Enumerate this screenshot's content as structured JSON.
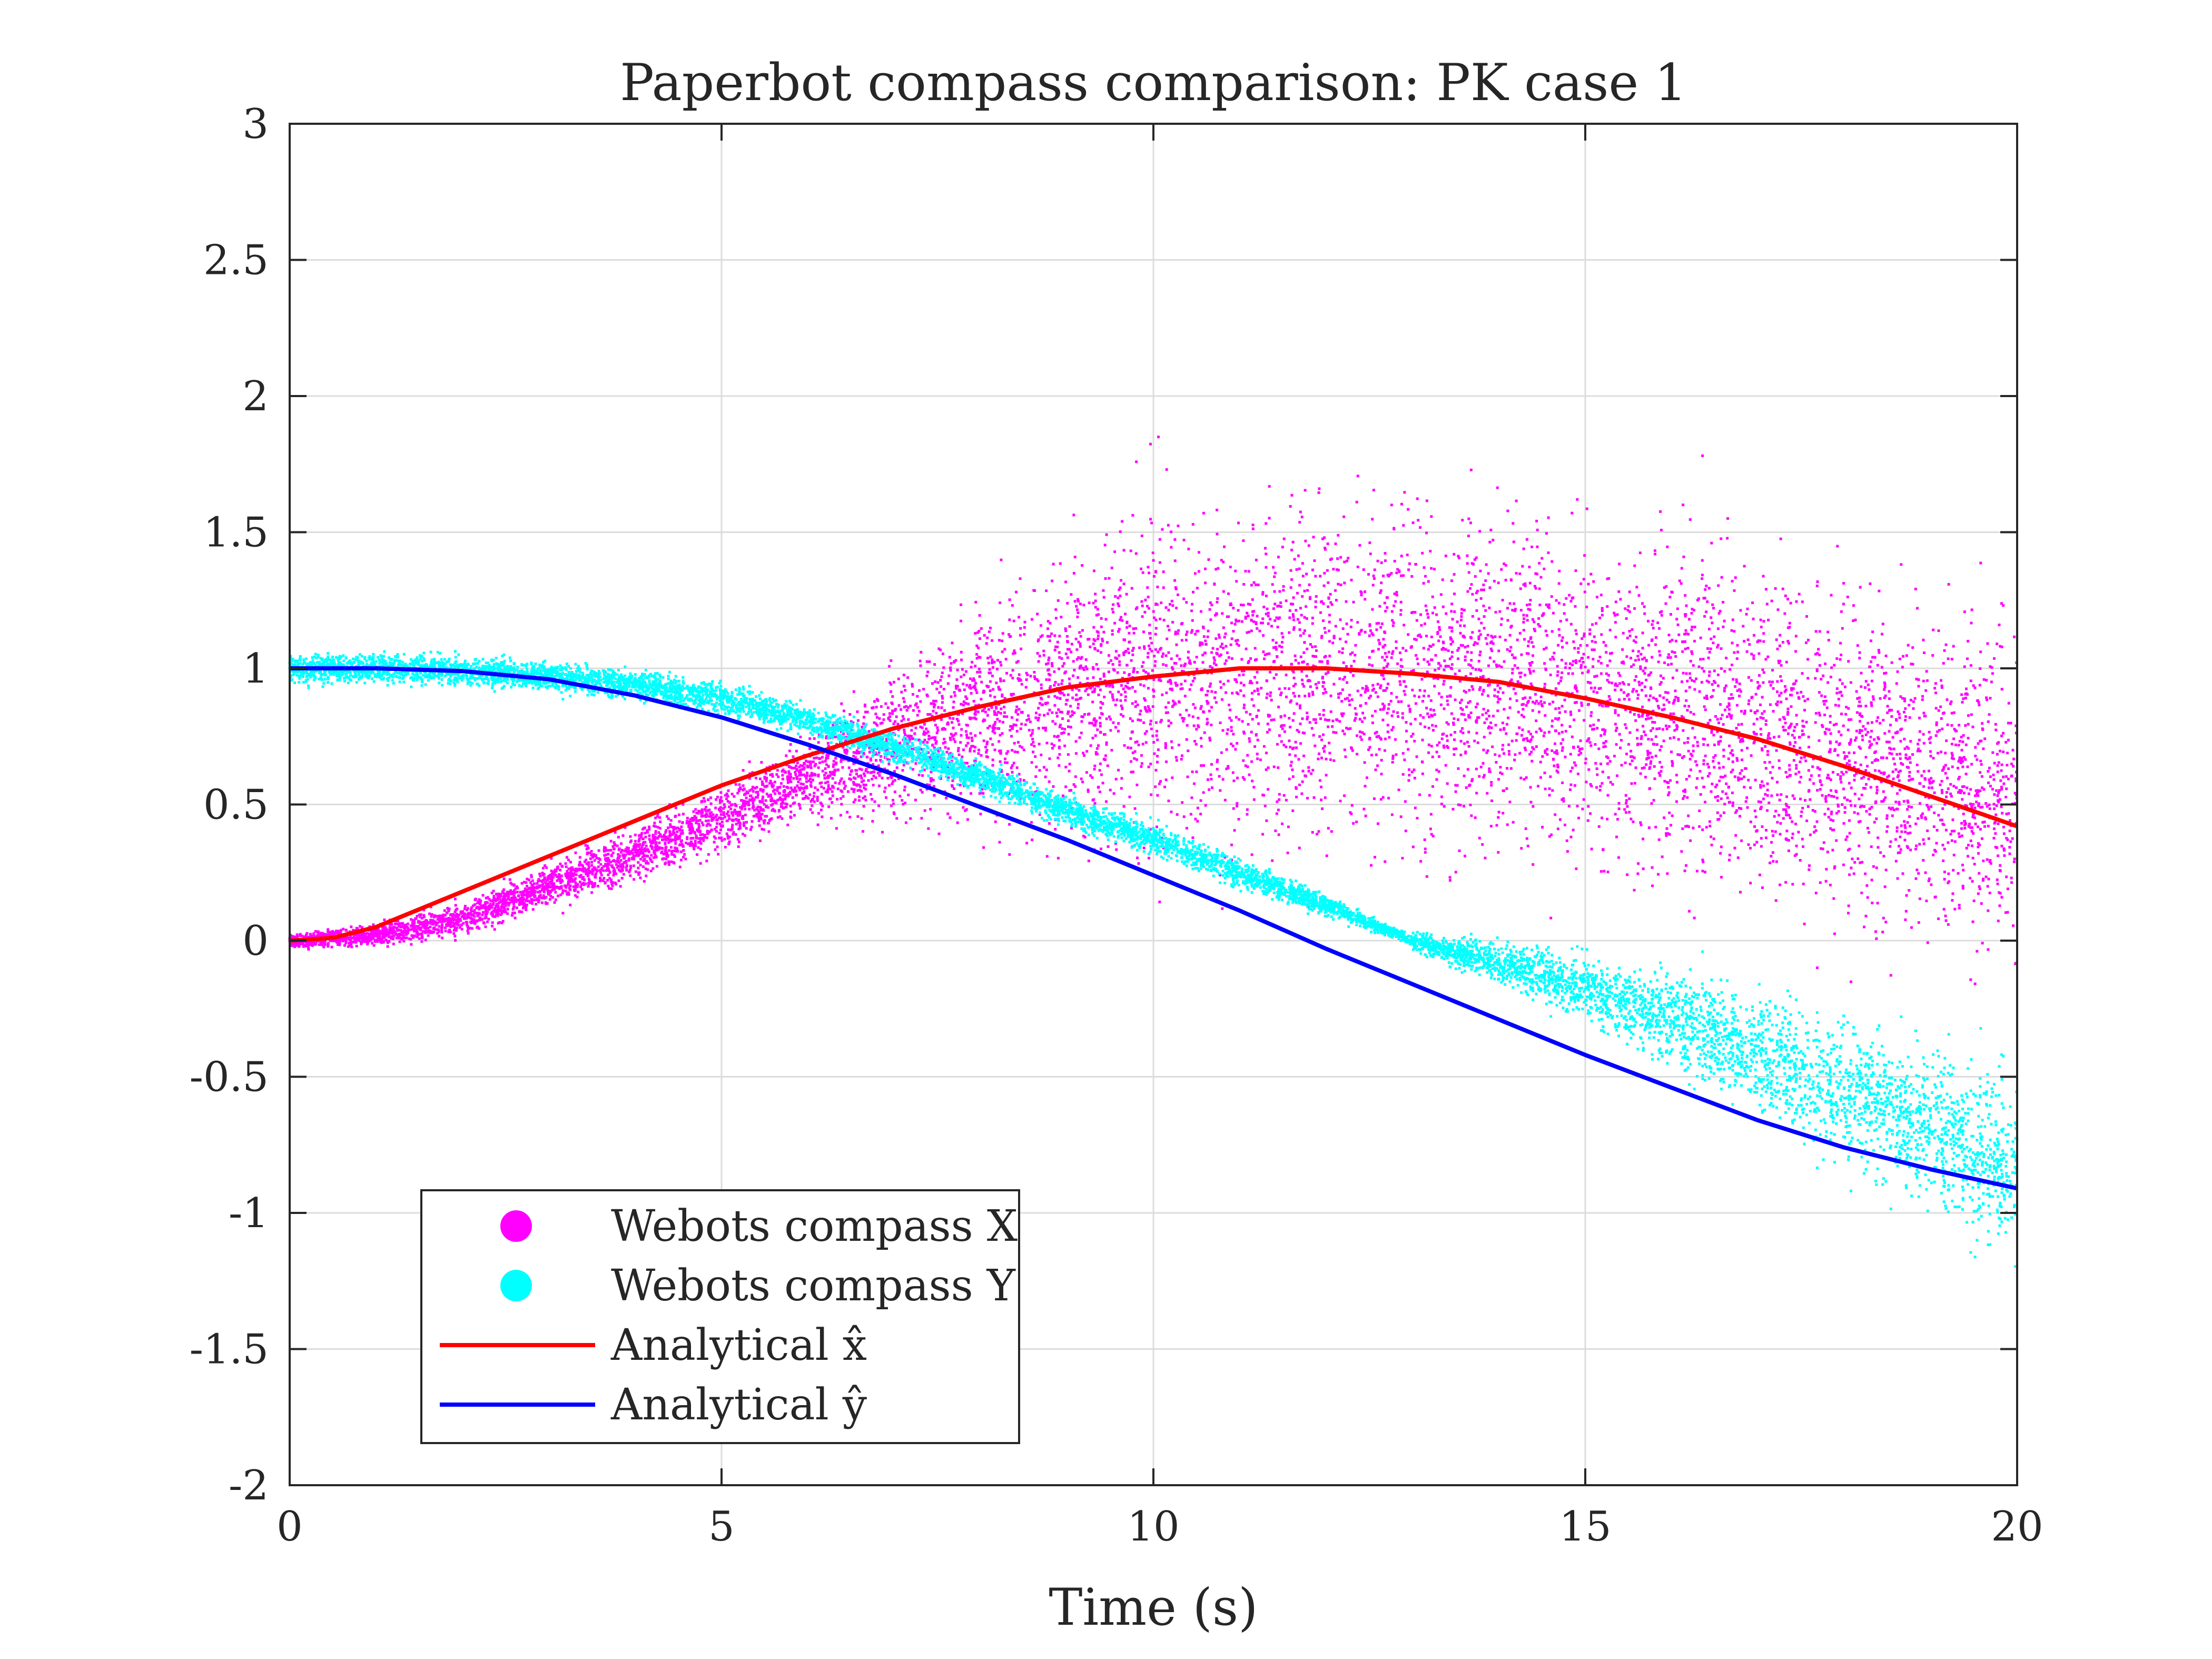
{
  "chart_data": {
    "type": "scatter",
    "title": "Paperbot compass comparison: PK case 1",
    "xlabel": "Time (s)",
    "ylabel": "",
    "xlim": [
      0,
      20
    ],
    "ylim": [
      -2,
      3
    ],
    "xticks": [
      0,
      5,
      10,
      15,
      20
    ],
    "xtick_labels": [
      "0",
      "5",
      "10",
      "15",
      "20"
    ],
    "yticks": [
      -2,
      -1.5,
      -1,
      -0.5,
      0,
      0.5,
      1,
      1.5,
      2,
      2.5,
      3
    ],
    "ytick_labels": [
      "-2",
      "-1.5",
      "-1",
      "-0.5",
      "0",
      "0.5",
      "1",
      "1.5",
      "2",
      "2.5",
      "3"
    ],
    "grid": true,
    "legend_position": "bottom-left",
    "series": [
      {
        "name": "Webots compass X",
        "kind": "scatter",
        "color": "#ff00ff",
        "note": "dense noisy point cloud; noise grows with time",
        "x": [
          0,
          1,
          2,
          3,
          4,
          5,
          6,
          7,
          8,
          9,
          10,
          11,
          12,
          13,
          14,
          15,
          16,
          17,
          18,
          19,
          20
        ],
        "y": [
          0.0,
          0.02,
          0.08,
          0.2,
          0.32,
          0.45,
          0.6,
          0.72,
          0.82,
          0.9,
          0.95,
          0.98,
          1.0,
          0.98,
          0.95,
          0.9,
          0.85,
          0.78,
          0.7,
          0.62,
          0.55
        ]
      },
      {
        "name": "Webots compass Y",
        "kind": "scatter",
        "color": "#00ffff",
        "note": "dense noisy point cloud; noise small until ~13 s, then grows",
        "x": [
          0,
          1,
          2,
          3,
          4,
          5,
          6,
          7,
          8,
          9,
          10,
          11,
          12,
          13,
          14,
          15,
          16,
          17,
          18,
          19,
          20
        ],
        "y": [
          1.0,
          1.0,
          0.99,
          0.97,
          0.94,
          0.89,
          0.81,
          0.71,
          0.6,
          0.48,
          0.37,
          0.25,
          0.13,
          0.0,
          -0.08,
          -0.17,
          -0.29,
          -0.41,
          -0.54,
          -0.68,
          -0.83
        ]
      },
      {
        "name": "Analytical x̂",
        "kind": "line",
        "color": "#ff0000",
        "x": [
          0,
          0.5,
          1,
          2,
          3,
          4,
          5,
          6,
          7,
          8,
          9,
          10,
          11,
          12,
          13,
          14,
          15,
          16,
          17,
          18,
          19,
          20
        ],
        "y": [
          0.0,
          0.01,
          0.05,
          0.18,
          0.31,
          0.44,
          0.57,
          0.68,
          0.78,
          0.86,
          0.93,
          0.97,
          1.0,
          1.0,
          0.98,
          0.95,
          0.89,
          0.82,
          0.74,
          0.64,
          0.53,
          0.42
        ]
      },
      {
        "name": "Analytical ŷ",
        "kind": "line",
        "color": "#0000ff",
        "x": [
          0,
          1,
          2,
          3,
          4,
          5,
          6,
          7,
          8,
          9,
          10,
          11,
          12,
          13,
          14,
          15,
          16,
          17,
          18,
          19,
          20
        ],
        "y": [
          1.0,
          1.0,
          0.99,
          0.96,
          0.9,
          0.82,
          0.72,
          0.61,
          0.49,
          0.37,
          0.24,
          0.11,
          -0.03,
          -0.16,
          -0.29,
          -0.42,
          -0.54,
          -0.66,
          -0.76,
          -0.84,
          -0.91
        ]
      }
    ],
    "legend": {
      "entries": [
        {
          "label": "Webots compass X",
          "symbol": "dot",
          "color": "#ff00ff"
        },
        {
          "label": "Webots compass Y",
          "symbol": "dot",
          "color": "#00ffff"
        },
        {
          "label": "Analytical x̂",
          "symbol": "line",
          "color": "#ff0000"
        },
        {
          "label": "Analytical ŷ",
          "symbol": "line",
          "color": "#0000ff"
        }
      ]
    }
  }
}
